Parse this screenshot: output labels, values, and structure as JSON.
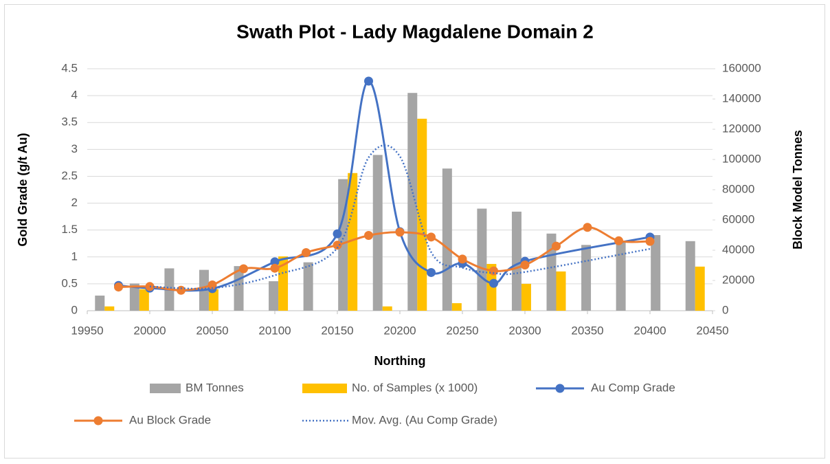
{
  "chart_data": {
    "type": "combo",
    "title": "Swath Plot - Lady Magdalene Domain 2",
    "xlabel": "Northing",
    "ylabel": "Gold Grade (g/t Au)",
    "y2label": "Block Model Tonnes",
    "xlim": [
      19950,
      20450
    ],
    "xticks": [
      19950,
      20000,
      20050,
      20100,
      20150,
      20200,
      20250,
      20300,
      20350,
      20400,
      20450
    ],
    "ylim": [
      0,
      4.5
    ],
    "yticks": [
      0,
      0.5,
      1,
      1.5,
      2,
      2.5,
      3,
      3.5,
      4,
      4.5
    ],
    "y2lim": [
      0,
      160000
    ],
    "y2ticks": [
      0,
      20000,
      40000,
      60000,
      80000,
      100000,
      120000,
      140000,
      160000
    ],
    "grid": true,
    "legend": "bottom",
    "categories": [
      null,
      null,
      null,
      null,
      null,
      null,
      null,
      null,
      null,
      null,
      null,
      null,
      null,
      null,
      null,
      null,
      null,
      null
    ],
    "series": [
      {
        "name": "BM Tonnes",
        "type": "bar",
        "axis": "y2",
        "color": "#a5a5a5",
        "values": [
          10000,
          18000,
          28000,
          27000,
          29500,
          19500,
          32000,
          87000,
          103000,
          144000,
          94000,
          67500,
          65500,
          51000,
          43500,
          46000,
          50000,
          46000
        ]
      },
      {
        "name": "No. of Samples (x 1000)",
        "type": "bar",
        "color": "#ffc000",
        "values": [
          0.08,
          0.4,
          0,
          0.4,
          0,
          1.01,
          0,
          2.56,
          0.08,
          3.57,
          0.14,
          0.87,
          0.5,
          0.73,
          0,
          0,
          0,
          0.82
        ]
      },
      {
        "name": "Au Comp Grade",
        "type": "line",
        "color": "#4472c4",
        "marker": true,
        "dash": false,
        "x": [
          19975,
          20000,
          20050,
          20100,
          20150,
          20175,
          20200,
          20225,
          20250,
          20275,
          20300,
          20400
        ],
        "values": [
          0.47,
          0.42,
          0.41,
          0.91,
          1.43,
          4.27,
          1.47,
          0.71,
          0.88,
          0.51,
          0.92,
          1.37
        ]
      },
      {
        "name": "Au Block Grade",
        "type": "line",
        "color": "#ed7d31",
        "marker": true,
        "dash": false,
        "x": [
          19975,
          20000,
          20025,
          20050,
          20075,
          20100,
          20125,
          20150,
          20175,
          20200,
          20225,
          20250,
          20275,
          20300,
          20325,
          20350,
          20375,
          20400
        ],
        "values": [
          0.44,
          0.45,
          0.38,
          0.48,
          0.78,
          0.79,
          1.08,
          1.22,
          1.4,
          1.46,
          1.37,
          0.96,
          0.74,
          0.85,
          1.2,
          1.55,
          1.3,
          1.29
        ]
      },
      {
        "name": "Mov. Avg. (Au Comp Grade)",
        "type": "line",
        "color": "#4472c4",
        "marker": false,
        "dash": true,
        "x": [
          20000,
          20050,
          20100,
          20150,
          20175,
          20200,
          20225,
          20250,
          20275,
          20300,
          20400
        ],
        "values": [
          0.45,
          0.42,
          0.66,
          1.17,
          2.85,
          2.87,
          1.09,
          0.8,
          0.7,
          0.72,
          1.15
        ]
      }
    ]
  }
}
